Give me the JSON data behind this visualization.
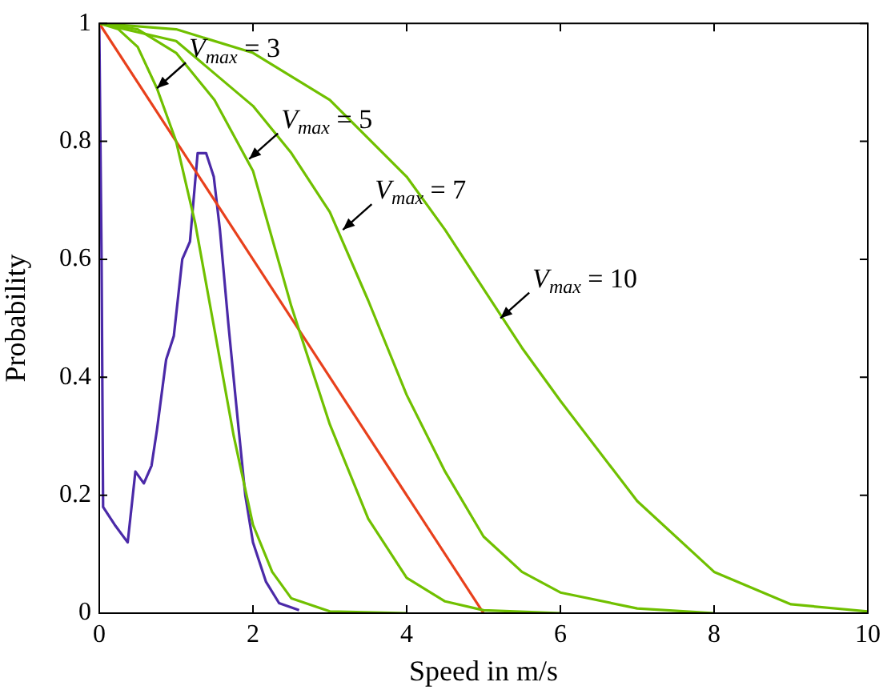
{
  "chart_data": {
    "type": "line",
    "xlabel": "Speed in m/s",
    "ylabel": "Probability",
    "xlim": [
      0,
      10
    ],
    "ylim": [
      0,
      1
    ],
    "xticks": [
      0,
      2,
      4,
      6,
      8,
      10
    ],
    "yticks": [
      0,
      0.2,
      0.4,
      0.6,
      0.8,
      1
    ],
    "series": [
      {
        "color": "#70c000",
        "x": [
          0,
          0.25,
          0.5,
          0.75,
          1,
          1.25,
          1.5,
          1.75,
          2,
          2.25,
          2.5,
          3,
          4
        ],
        "values": [
          1,
          0.99,
          0.96,
          0.89,
          0.8,
          0.66,
          0.48,
          0.3,
          0.15,
          0.07,
          0.025,
          0.003,
          0
        ]
      },
      {
        "color": "#70c000",
        "x": [
          0,
          0.5,
          1,
          1.5,
          2,
          2.5,
          3,
          3.5,
          4,
          4.5,
          5,
          6
        ],
        "values": [
          1,
          0.99,
          0.95,
          0.87,
          0.75,
          0.52,
          0.32,
          0.16,
          0.06,
          0.02,
          0.005,
          0
        ]
      },
      {
        "color": "#70c000",
        "x": [
          0,
          1,
          2,
          2.5,
          3,
          3.5,
          4,
          4.5,
          5,
          5.5,
          6,
          7,
          8
        ],
        "values": [
          1,
          0.97,
          0.86,
          0.78,
          0.68,
          0.53,
          0.37,
          0.24,
          0.13,
          0.07,
          0.035,
          0.008,
          0
        ]
      },
      {
        "color": "#70c000",
        "x": [
          0,
          1,
          2,
          3,
          4,
          4.5,
          5,
          5.5,
          6,
          7,
          8,
          9,
          10
        ],
        "values": [
          1,
          0.99,
          0.95,
          0.87,
          0.74,
          0.65,
          0.55,
          0.45,
          0.36,
          0.19,
          0.07,
          0.015,
          0.003
        ]
      },
      {
        "color": "#e8401c",
        "x": [
          0,
          5
        ],
        "values": [
          1,
          0
        ]
      },
      {
        "color": "#4b2aa8",
        "x": [
          0,
          0.03,
          0.05,
          0.2,
          0.37,
          0.47,
          0.58,
          0.68,
          0.75,
          0.87,
          0.97,
          1.08,
          1.18,
          1.28,
          1.39,
          1.49,
          1.57,
          1.68,
          1.8,
          1.9,
          2,
          2.17,
          2.34,
          2.6
        ],
        "values": [
          1,
          0.6,
          0.18,
          0.15,
          0.12,
          0.24,
          0.22,
          0.25,
          0.31,
          0.43,
          0.47,
          0.6,
          0.63,
          0.78,
          0.78,
          0.74,
          0.65,
          0.49,
          0.33,
          0.2,
          0.12,
          0.053,
          0.017,
          0.005
        ]
      }
    ],
    "annotations": [
      {
        "text": "V$_{max}$ = 3",
        "x": 0.75,
        "y": 0.89
      },
      {
        "text": "V$_{max}$ = 5",
        "x": 1.95,
        "y": 0.77
      },
      {
        "text": "V$_{max}$ = 7",
        "x": 3.17,
        "y": 0.65
      },
      {
        "text": "V$_{max}$ = 10",
        "x": 5.22,
        "y": 0.5
      }
    ]
  }
}
